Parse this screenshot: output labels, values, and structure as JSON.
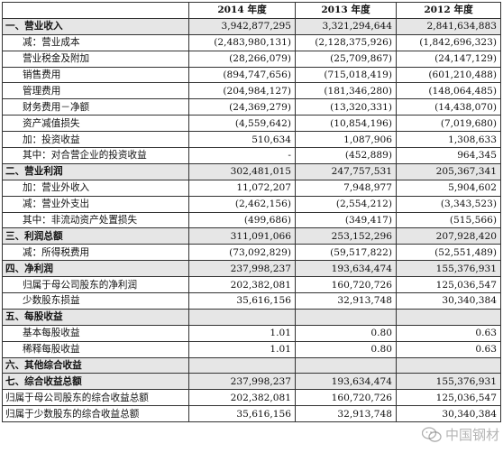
{
  "headers": [
    "",
    "2014 年度",
    "2013 年度",
    "2012 年度"
  ],
  "rows": [
    {
      "label": "一、营业收入",
      "v2014": "3,942,877,295",
      "v2013": "3,321,294,644",
      "v2012": "2,841,634,883",
      "style": "section"
    },
    {
      "label": "减：营业成本",
      "v2014": "(2,483,980,131)",
      "v2013": "(2,128,375,926)",
      "v2012": "(1,842,696,323)",
      "style": "sub"
    },
    {
      "label": "营业税金及附加",
      "v2014": "(28,266,079)",
      "v2013": "(25,709,867)",
      "v2012": "(24,147,129)",
      "style": "sub2"
    },
    {
      "label": "销售费用",
      "v2014": "(894,747,656)",
      "v2013": "(715,018,419)",
      "v2012": "(601,210,488)",
      "style": "sub2"
    },
    {
      "label": "管理费用",
      "v2014": "(204,984,127)",
      "v2013": "(181,346,280)",
      "v2012": "(148,064,485)",
      "style": "sub2"
    },
    {
      "label": "财务费用－净额",
      "v2014": "(24,369,279)",
      "v2013": "(13,320,331)",
      "v2012": "(14,438,070)",
      "style": "sub2"
    },
    {
      "label": "资产减值损失",
      "v2014": "(4,559,642)",
      "v2013": "(10,854,196)",
      "v2012": "(7,019,680)",
      "style": "sub2"
    },
    {
      "label": "加：投资收益",
      "v2014": "510,634",
      "v2013": "1,087,906",
      "v2012": "1,308,633",
      "style": "sub"
    },
    {
      "label": "其中：对合营企业的投资收益",
      "v2014": "-",
      "v2013": "(452,889)",
      "v2012": "964,345",
      "style": "sub"
    },
    {
      "label": "二、营业利润",
      "v2014": "302,481,015",
      "v2013": "247,757,531",
      "v2012": "205,367,341",
      "style": "section"
    },
    {
      "label": "加：营业外收入",
      "v2014": "11,072,207",
      "v2013": "7,948,977",
      "v2012": "5,904,602",
      "style": "sub"
    },
    {
      "label": "减：营业外支出",
      "v2014": "(2,462,156)",
      "v2013": "(2,554,212)",
      "v2012": "(3,343,523)",
      "style": "sub"
    },
    {
      "label": "其中：非流动资产处置损失",
      "v2014": "(499,686)",
      "v2013": "(349,417)",
      "v2012": "(515,566)",
      "style": "sub"
    },
    {
      "label": "三、利润总额",
      "v2014": "311,091,066",
      "v2013": "253,152,296",
      "v2012": "207,928,420",
      "style": "section"
    },
    {
      "label": "减：所得税费用",
      "v2014": "(73,092,829)",
      "v2013": "(59,517,822)",
      "v2012": "(52,551,489)",
      "style": "sub"
    },
    {
      "label": "四、净利润",
      "v2014": "237,998,237",
      "v2013": "193,634,474",
      "v2012": "155,376,931",
      "style": "section"
    },
    {
      "label": "归属于母公司股东的净利润",
      "v2014": "202,382,081",
      "v2013": "160,720,726",
      "v2012": "125,036,547",
      "style": "sub2"
    },
    {
      "label": "少数股东损益",
      "v2014": "35,616,156",
      "v2013": "32,913,748",
      "v2012": "30,340,384",
      "style": "sub2"
    },
    {
      "label": "五、每股收益",
      "v2014": "",
      "v2013": "",
      "v2012": "",
      "style": "section"
    },
    {
      "label": "基本每股收益",
      "v2014": "1.01",
      "v2013": "0.80",
      "v2012": "0.63",
      "style": "sub2"
    },
    {
      "label": "稀释每股收益",
      "v2014": "1.01",
      "v2013": "0.80",
      "v2012": "0.63",
      "style": "sub2"
    },
    {
      "label": "六、其他综合收益",
      "v2014": "",
      "v2013": "",
      "v2012": "",
      "style": "section"
    },
    {
      "label": "七、综合收益总额",
      "v2014": "237,998,237",
      "v2013": "193,634,474",
      "v2012": "155,376,931",
      "style": "section"
    },
    {
      "label": "归属于母公司股东的综合收益总额",
      "v2014": "202,382,081",
      "v2013": "160,720,726",
      "v2012": "125,036,547",
      "style": "plain"
    },
    {
      "label": "归属于少数股东的综合收益总额",
      "v2014": "35,616,156",
      "v2013": "32,913,748",
      "v2012": "30,340,384",
      "style": "plain"
    }
  ],
  "watermark": {
    "text": "中国钢材",
    "icon": "wechat-icon"
  }
}
